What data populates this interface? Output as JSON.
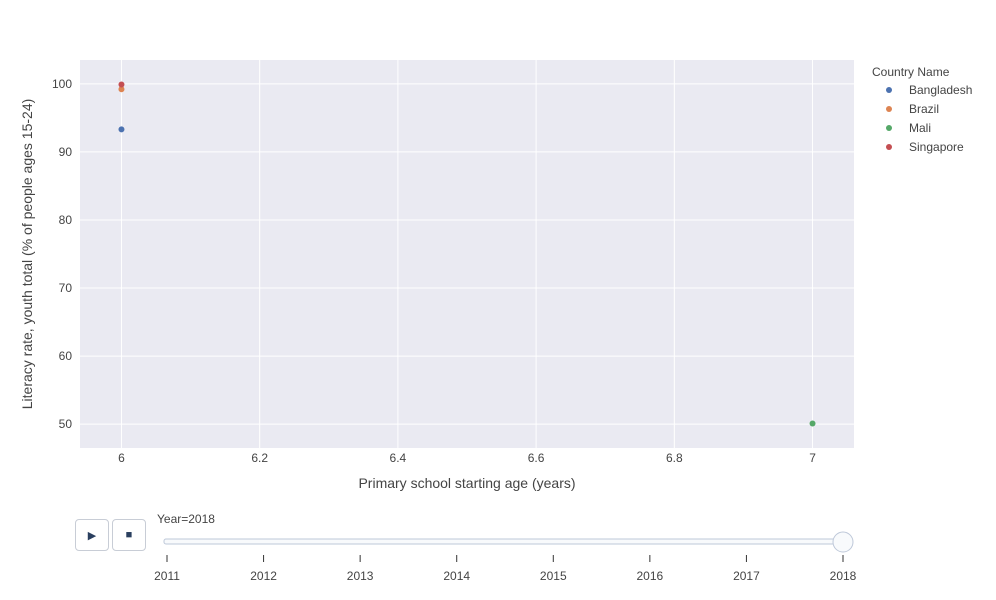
{
  "chart_data": {
    "type": "scatter",
    "xlabel": "Primary school starting age (years)",
    "ylabel": "Literacy rate, youth total (% of people ages 15-24)",
    "xlim": [
      5.94,
      7.06
    ],
    "ylim": [
      46.5,
      103.5
    ],
    "x_ticks": [
      6,
      6.2,
      6.4,
      6.6,
      6.8,
      7
    ],
    "x_tick_labels": [
      "6",
      "6.2",
      "6.4",
      "6.6",
      "6.8",
      "7"
    ],
    "y_ticks": [
      50,
      60,
      70,
      80,
      90,
      100
    ],
    "grid": true,
    "legend_title": "Country Name",
    "legend_position": "top-right, outside plot",
    "series": [
      {
        "name": "Bangladesh",
        "color": "#4c72b0",
        "points": [
          {
            "x": 6,
            "y": 93.3
          }
        ]
      },
      {
        "name": "Brazil",
        "color": "#dd8452",
        "points": [
          {
            "x": 6,
            "y": 99.2
          }
        ]
      },
      {
        "name": "Mali",
        "color": "#55a868",
        "points": [
          {
            "x": 7,
            "y": 50.1
          }
        ]
      },
      {
        "name": "Singapore",
        "color": "#c44e52",
        "points": [
          {
            "x": 6,
            "y": 99.9
          }
        ]
      }
    ]
  },
  "slider": {
    "current_label": "Year=2018",
    "current_value": "2018",
    "steps": [
      "2011",
      "2012",
      "2013",
      "2014",
      "2015",
      "2016",
      "2017",
      "2018"
    ]
  },
  "controls": {
    "play_symbol": "▶",
    "stop_symbol": "■"
  },
  "colors": {
    "plot_bg": "#eaeaf2",
    "grid": "#ffffff"
  }
}
